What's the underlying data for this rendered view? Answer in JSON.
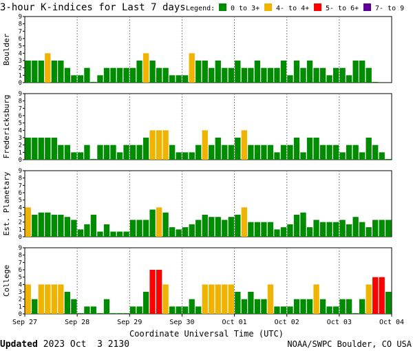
{
  "header": {
    "title": "3-hour K-indices for Last 7 days",
    "legend_label": "Legend:",
    "legend": [
      {
        "label": "0 to 3+",
        "color": "#008c00"
      },
      {
        "label": "4- to 4+",
        "color": "#f0b400"
      },
      {
        "label": "5- to 6+",
        "color": "#ff0000"
      },
      {
        "label": "7- to 9",
        "color": "#5a0096"
      }
    ]
  },
  "footer": {
    "updated_label": "Updated",
    "updated_time": "2023 Oct  3 2130",
    "credit": "NOAA/SWPC Boulder, CO USA"
  },
  "chart_data": [
    {
      "type": "bar",
      "ylabel": "Boulder",
      "ylim": [
        0,
        9
      ],
      "yticks": [
        "0",
        "1",
        "2",
        "3",
        "4",
        "5",
        "6",
        "7",
        "8",
        "9"
      ],
      "xlabel": "Coordinate Universal Time (UTC)",
      "xticks": [
        "Sep 27",
        "Sep 28",
        "Sep 29",
        "Sep 30",
        "Oct 01",
        "Oct 02",
        "Oct 03",
        "Oct 04"
      ],
      "grid": true,
      "values": [
        3,
        3,
        3,
        4,
        3,
        3,
        2,
        1,
        1,
        2,
        0,
        1,
        2,
        2,
        2,
        2,
        2,
        3,
        4,
        3,
        2,
        2,
        1,
        1,
        1,
        4,
        3,
        3,
        2,
        3,
        2,
        2,
        3,
        2,
        2,
        3,
        2,
        2,
        2,
        3,
        1,
        3,
        2,
        3,
        2,
        2,
        1,
        2,
        2,
        1,
        3,
        3,
        2,
        0
      ]
    },
    {
      "type": "bar",
      "ylabel": "Fredericksburg",
      "ylim": [
        0,
        9
      ],
      "yticks": [
        "0",
        "1",
        "2",
        "3",
        "4",
        "5",
        "6",
        "7",
        "8",
        "9"
      ],
      "grid": true,
      "values": [
        3,
        3,
        3,
        3,
        3,
        2,
        2,
        1,
        1,
        2,
        0,
        2,
        2,
        2,
        1,
        2,
        2,
        2,
        3,
        4,
        4,
        4,
        2,
        1,
        1,
        1,
        2,
        4,
        2,
        3,
        2,
        2,
        3,
        4,
        2,
        2,
        2,
        2,
        1,
        2,
        2,
        3,
        1,
        3,
        3,
        2,
        2,
        2,
        1,
        2,
        2,
        1,
        3,
        2,
        1,
        0
      ]
    },
    {
      "type": "bar",
      "ylabel": "Est. Planetary",
      "ylim": [
        0,
        9
      ],
      "yticks": [
        "0",
        "1",
        "2",
        "3",
        "4",
        "5",
        "6",
        "7",
        "8",
        "9"
      ],
      "grid": true,
      "values": [
        4,
        3,
        3.3,
        3.3,
        3,
        3,
        2.7,
        2.3,
        1,
        1.7,
        3,
        0.7,
        1.7,
        0.7,
        0.7,
        0.7,
        2.3,
        2.3,
        2.3,
        3.7,
        4,
        3.3,
        1.3,
        1,
        1.3,
        1.7,
        2.3,
        3,
        2.7,
        2.7,
        2.3,
        2.7,
        3,
        4,
        2,
        2,
        2,
        2,
        1,
        1.3,
        1.7,
        3,
        3.3,
        1.3,
        2.3,
        2,
        2,
        2,
        2.3,
        1.7,
        2.7,
        2,
        1.3,
        2.3,
        2.3,
        2.3
      ]
    },
    {
      "type": "bar",
      "ylabel": "College",
      "ylim": [
        0,
        9
      ],
      "yticks": [
        "0",
        "1",
        "2",
        "3",
        "4",
        "5",
        "6",
        "7",
        "8",
        "9"
      ],
      "grid": true,
      "values": [
        4,
        2,
        4,
        4,
        4,
        4,
        3,
        2,
        0,
        1,
        1,
        0,
        2,
        0,
        0,
        0,
        1,
        1,
        3,
        6,
        6,
        4,
        1,
        1,
        1,
        2,
        1,
        4,
        4,
        4,
        4,
        4,
        3,
        2,
        3,
        2,
        2,
        4,
        1,
        1,
        1,
        2,
        2,
        2,
        4,
        2,
        1,
        1,
        2,
        2,
        0,
        2,
        4,
        5,
        5,
        3,
        0
      ]
    }
  ]
}
